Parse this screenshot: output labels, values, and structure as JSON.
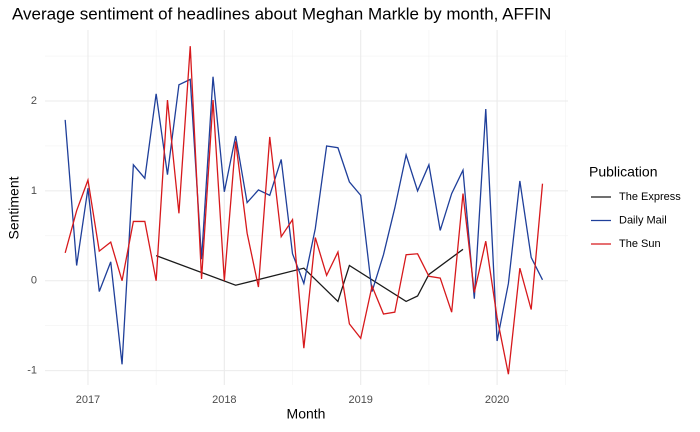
{
  "chart_data": {
    "type": "line",
    "title": "Average sentiment of headlines about Meghan Markle by month, AFFIN",
    "x_label": "Month",
    "y_label": "Sentiment",
    "legend_title": "Publication",
    "xlim": [
      2016.685,
      2020.52
    ],
    "ylim": [
      -1.16,
      2.79
    ],
    "xticks": [
      2017,
      2018,
      2019,
      2020
    ],
    "yticks": [
      -1,
      0,
      1,
      2
    ],
    "grid": true,
    "legend": "right",
    "series": [
      {
        "name": "The Express",
        "color": "#1a1a1a",
        "x": [
          2017.5,
          2018.083,
          2018.583,
          2018.833,
          2018.917,
          2019.333,
          2019.417,
          2019.5,
          2019.75
        ],
        "values": [
          0.28,
          -0.05,
          0.14,
          -0.23,
          0.17,
          -0.23,
          -0.17,
          0.07,
          0.35
        ]
      },
      {
        "name": "Daily Mail",
        "color": "#1f3f9a",
        "x": [
          2016.833,
          2016.917,
          2017.0,
          2017.083,
          2017.167,
          2017.25,
          2017.333,
          2017.417,
          2017.5,
          2017.583,
          2017.667,
          2017.75,
          2017.833,
          2017.917,
          2018.0,
          2018.083,
          2018.167,
          2018.25,
          2018.333,
          2018.417,
          2018.5,
          2018.583,
          2018.667,
          2018.75,
          2018.833,
          2018.917,
          2019.0,
          2019.083,
          2019.167,
          2019.25,
          2019.333,
          2019.417,
          2019.5,
          2019.583,
          2019.667,
          2019.75,
          2019.833,
          2019.917,
          2020.0,
          2020.083,
          2020.167,
          2020.25,
          2020.333
        ],
        "values": [
          1.79,
          0.17,
          1.03,
          -0.12,
          0.21,
          -0.93,
          1.29,
          1.14,
          2.08,
          1.18,
          2.18,
          2.24,
          0.24,
          2.27,
          0.99,
          1.61,
          0.87,
          1.01,
          0.95,
          1.35,
          0.3,
          -0.03,
          0.58,
          1.5,
          1.48,
          1.1,
          0.95,
          -0.12,
          0.29,
          0.81,
          1.4,
          1.0,
          1.29,
          0.56,
          0.97,
          1.23,
          -0.2,
          1.91,
          -0.67,
          -0.03,
          1.11,
          0.26,
          0.01
        ]
      },
      {
        "name": "The Sun",
        "color": "#d7191c",
        "x": [
          2016.833,
          2016.917,
          2017.0,
          2017.083,
          2017.167,
          2017.25,
          2017.333,
          2017.417,
          2017.5,
          2017.583,
          2017.667,
          2017.75,
          2017.833,
          2017.917,
          2018.0,
          2018.083,
          2018.167,
          2018.25,
          2018.333,
          2018.417,
          2018.5,
          2018.583,
          2018.667,
          2018.75,
          2018.833,
          2018.917,
          2019.0,
          2019.083,
          2019.167,
          2019.25,
          2019.333,
          2019.417,
          2019.5,
          2019.583,
          2019.667,
          2019.75,
          2019.833,
          2019.917,
          2020.0,
          2020.083,
          2020.167,
          2020.25,
          2020.333
        ],
        "values": [
          0.31,
          0.78,
          1.12,
          0.33,
          0.43,
          0.0,
          0.66,
          0.66,
          0.0,
          2.01,
          0.75,
          2.61,
          0.02,
          2.01,
          0.0,
          1.55,
          0.53,
          -0.07,
          1.6,
          0.49,
          0.68,
          -0.75,
          0.48,
          0.06,
          0.32,
          -0.48,
          -0.64,
          -0.06,
          -0.37,
          -0.35,
          0.29,
          0.3,
          0.05,
          0.03,
          -0.35,
          0.97,
          -0.13,
          0.44,
          -0.41,
          -1.04,
          0.14,
          -0.32,
          1.08
        ]
      }
    ]
  }
}
